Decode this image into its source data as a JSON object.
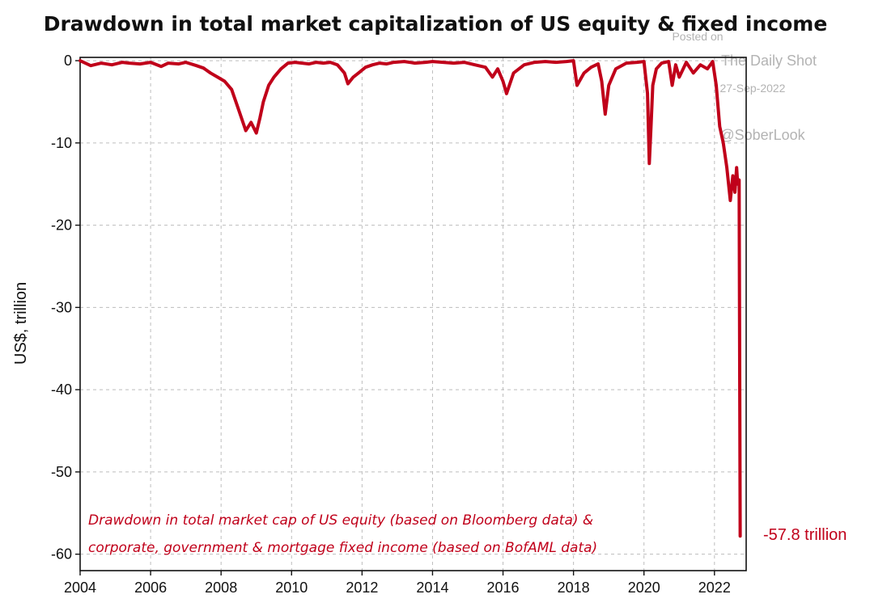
{
  "chart_data": {
    "type": "line",
    "title": "Drawdown in total market capitalization of US equity & fixed income",
    "ylabel": "US$, trillion",
    "xlabel": "",
    "xlim": [
      2004,
      2022.9
    ],
    "ylim": [
      -62,
      0.4
    ],
    "x_ticks": [
      2004,
      2006,
      2008,
      2010,
      2012,
      2014,
      2016,
      2018,
      2020,
      2022
    ],
    "x_tick_labels": [
      "2004",
      "2006",
      "2008",
      "2010",
      "2012",
      "2014",
      "2016",
      "2018",
      "2020",
      "2022"
    ],
    "y_ticks": [
      0,
      -10,
      -20,
      -30,
      -40,
      -50,
      -60
    ],
    "y_tick_labels": [
      "0",
      "-10",
      "-20",
      "-30",
      "-40",
      "-50",
      "-60"
    ],
    "grid": true,
    "annotation": {
      "line1": "Drawdown in total market cap of US equity (based on Bloomberg data) &",
      "line2": "corporate, government & mortgage fixed income (based on BofAML data)"
    },
    "end_label": "-57.8 trillion",
    "watermark": {
      "posted_on": "Posted on",
      "source": "The Daily Shot",
      "date": "27-Sep-2022",
      "handle": "@SoberLook"
    },
    "series": [
      {
        "color": "#c0001a",
        "x": [
          2004.0,
          2004.3,
          2004.6,
          2004.9,
          2005.2,
          2005.4,
          2005.7,
          2006.0,
          2006.3,
          2006.5,
          2006.8,
          2007.0,
          2007.3,
          2007.5,
          2007.7,
          2007.9,
          2008.1,
          2008.3,
          2008.5,
          2008.7,
          2008.85,
          2009.0,
          2009.1,
          2009.2,
          2009.35,
          2009.5,
          2009.7,
          2009.9,
          2010.1,
          2010.3,
          2010.5,
          2010.7,
          2010.9,
          2011.1,
          2011.3,
          2011.5,
          2011.6,
          2011.75,
          2011.9,
          2012.1,
          2012.3,
          2012.5,
          2012.7,
          2012.9,
          2013.2,
          2013.5,
          2013.8,
          2014.0,
          2014.3,
          2014.6,
          2014.9,
          2015.2,
          2015.5,
          2015.7,
          2015.85,
          2016.0,
          2016.1,
          2016.3,
          2016.6,
          2016.9,
          2017.2,
          2017.5,
          2017.8,
          2018.0,
          2018.1,
          2018.3,
          2018.5,
          2018.7,
          2018.8,
          2018.9,
          2019.0,
          2019.2,
          2019.5,
          2019.8,
          2020.0,
          2020.1,
          2020.15,
          2020.2,
          2020.25,
          2020.35,
          2020.5,
          2020.7,
          2020.8,
          2020.9,
          2021.0,
          2021.2,
          2021.4,
          2021.6,
          2021.8,
          2021.95,
          2022.05,
          2022.15,
          2022.25,
          2022.35,
          2022.45,
          2022.52,
          2022.58,
          2022.63,
          2022.66,
          2022.7,
          2022.73
        ],
        "values": [
          0,
          -0.6,
          -0.3,
          -0.5,
          -0.2,
          -0.3,
          -0.4,
          -0.2,
          -0.7,
          -0.3,
          -0.4,
          -0.2,
          -0.6,
          -0.9,
          -1.5,
          -2.0,
          -2.5,
          -3.5,
          -6.0,
          -8.5,
          -7.5,
          -8.8,
          -7.0,
          -5.0,
          -3.0,
          -2.0,
          -1.0,
          -0.3,
          -0.2,
          -0.3,
          -0.4,
          -0.2,
          -0.3,
          -0.2,
          -0.5,
          -1.5,
          -2.8,
          -2.0,
          -1.5,
          -0.8,
          -0.5,
          -0.3,
          -0.4,
          -0.2,
          -0.1,
          -0.3,
          -0.2,
          -0.1,
          -0.2,
          -0.3,
          -0.2,
          -0.5,
          -0.8,
          -2.0,
          -1.0,
          -2.5,
          -4.0,
          -1.5,
          -0.5,
          -0.2,
          -0.1,
          -0.2,
          -0.1,
          0,
          -3.0,
          -1.5,
          -0.8,
          -0.4,
          -2.5,
          -6.5,
          -3.0,
          -1.0,
          -0.3,
          -0.2,
          -0.1,
          -4.0,
          -12.5,
          -8.0,
          -3.0,
          -1.0,
          -0.3,
          -0.1,
          -3.0,
          -0.5,
          -2.0,
          -0.2,
          -1.5,
          -0.5,
          -1.0,
          -0.1,
          -3.0,
          -8.0,
          -10.0,
          -13.0,
          -17.0,
          -14.0,
          -16.0,
          -13.0,
          -15.0,
          -14.5,
          -57.8
        ]
      }
    ]
  }
}
